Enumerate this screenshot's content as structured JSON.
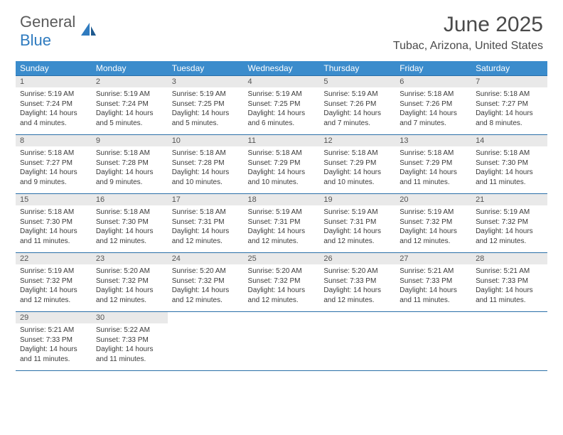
{
  "brand": {
    "word1": "General",
    "word2": "Blue"
  },
  "title": "June 2025",
  "location": "Tubac, Arizona, United States",
  "colors": {
    "header_bg": "#3b8ccc",
    "header_border": "#2a6fa8",
    "daynum_bg": "#e9e9e9",
    "text": "#3a3a3a",
    "brand_gray": "#5a5a5a",
    "brand_blue": "#2f7bbf"
  },
  "weekdays": [
    "Sunday",
    "Monday",
    "Tuesday",
    "Wednesday",
    "Thursday",
    "Friday",
    "Saturday"
  ],
  "weeks": [
    [
      {
        "n": "1",
        "sr": "5:19 AM",
        "ss": "7:24 PM",
        "dl": "14 hours and 4 minutes."
      },
      {
        "n": "2",
        "sr": "5:19 AM",
        "ss": "7:24 PM",
        "dl": "14 hours and 5 minutes."
      },
      {
        "n": "3",
        "sr": "5:19 AM",
        "ss": "7:25 PM",
        "dl": "14 hours and 5 minutes."
      },
      {
        "n": "4",
        "sr": "5:19 AM",
        "ss": "7:25 PM",
        "dl": "14 hours and 6 minutes."
      },
      {
        "n": "5",
        "sr": "5:19 AM",
        "ss": "7:26 PM",
        "dl": "14 hours and 7 minutes."
      },
      {
        "n": "6",
        "sr": "5:18 AM",
        "ss": "7:26 PM",
        "dl": "14 hours and 7 minutes."
      },
      {
        "n": "7",
        "sr": "5:18 AM",
        "ss": "7:27 PM",
        "dl": "14 hours and 8 minutes."
      }
    ],
    [
      {
        "n": "8",
        "sr": "5:18 AM",
        "ss": "7:27 PM",
        "dl": "14 hours and 9 minutes."
      },
      {
        "n": "9",
        "sr": "5:18 AM",
        "ss": "7:28 PM",
        "dl": "14 hours and 9 minutes."
      },
      {
        "n": "10",
        "sr": "5:18 AM",
        "ss": "7:28 PM",
        "dl": "14 hours and 10 minutes."
      },
      {
        "n": "11",
        "sr": "5:18 AM",
        "ss": "7:29 PM",
        "dl": "14 hours and 10 minutes."
      },
      {
        "n": "12",
        "sr": "5:18 AM",
        "ss": "7:29 PM",
        "dl": "14 hours and 10 minutes."
      },
      {
        "n": "13",
        "sr": "5:18 AM",
        "ss": "7:29 PM",
        "dl": "14 hours and 11 minutes."
      },
      {
        "n": "14",
        "sr": "5:18 AM",
        "ss": "7:30 PM",
        "dl": "14 hours and 11 minutes."
      }
    ],
    [
      {
        "n": "15",
        "sr": "5:18 AM",
        "ss": "7:30 PM",
        "dl": "14 hours and 11 minutes."
      },
      {
        "n": "16",
        "sr": "5:18 AM",
        "ss": "7:30 PM",
        "dl": "14 hours and 12 minutes."
      },
      {
        "n": "17",
        "sr": "5:18 AM",
        "ss": "7:31 PM",
        "dl": "14 hours and 12 minutes."
      },
      {
        "n": "18",
        "sr": "5:19 AM",
        "ss": "7:31 PM",
        "dl": "14 hours and 12 minutes."
      },
      {
        "n": "19",
        "sr": "5:19 AM",
        "ss": "7:31 PM",
        "dl": "14 hours and 12 minutes."
      },
      {
        "n": "20",
        "sr": "5:19 AM",
        "ss": "7:32 PM",
        "dl": "14 hours and 12 minutes."
      },
      {
        "n": "21",
        "sr": "5:19 AM",
        "ss": "7:32 PM",
        "dl": "14 hours and 12 minutes."
      }
    ],
    [
      {
        "n": "22",
        "sr": "5:19 AM",
        "ss": "7:32 PM",
        "dl": "14 hours and 12 minutes."
      },
      {
        "n": "23",
        "sr": "5:20 AM",
        "ss": "7:32 PM",
        "dl": "14 hours and 12 minutes."
      },
      {
        "n": "24",
        "sr": "5:20 AM",
        "ss": "7:32 PM",
        "dl": "14 hours and 12 minutes."
      },
      {
        "n": "25",
        "sr": "5:20 AM",
        "ss": "7:32 PM",
        "dl": "14 hours and 12 minutes."
      },
      {
        "n": "26",
        "sr": "5:20 AM",
        "ss": "7:33 PM",
        "dl": "14 hours and 12 minutes."
      },
      {
        "n": "27",
        "sr": "5:21 AM",
        "ss": "7:33 PM",
        "dl": "14 hours and 11 minutes."
      },
      {
        "n": "28",
        "sr": "5:21 AM",
        "ss": "7:33 PM",
        "dl": "14 hours and 11 minutes."
      }
    ],
    [
      {
        "n": "29",
        "sr": "5:21 AM",
        "ss": "7:33 PM",
        "dl": "14 hours and 11 minutes."
      },
      {
        "n": "30",
        "sr": "5:22 AM",
        "ss": "7:33 PM",
        "dl": "14 hours and 11 minutes."
      },
      null,
      null,
      null,
      null,
      null
    ]
  ],
  "labels": {
    "sunrise": "Sunrise:",
    "sunset": "Sunset:",
    "daylight": "Daylight:"
  }
}
